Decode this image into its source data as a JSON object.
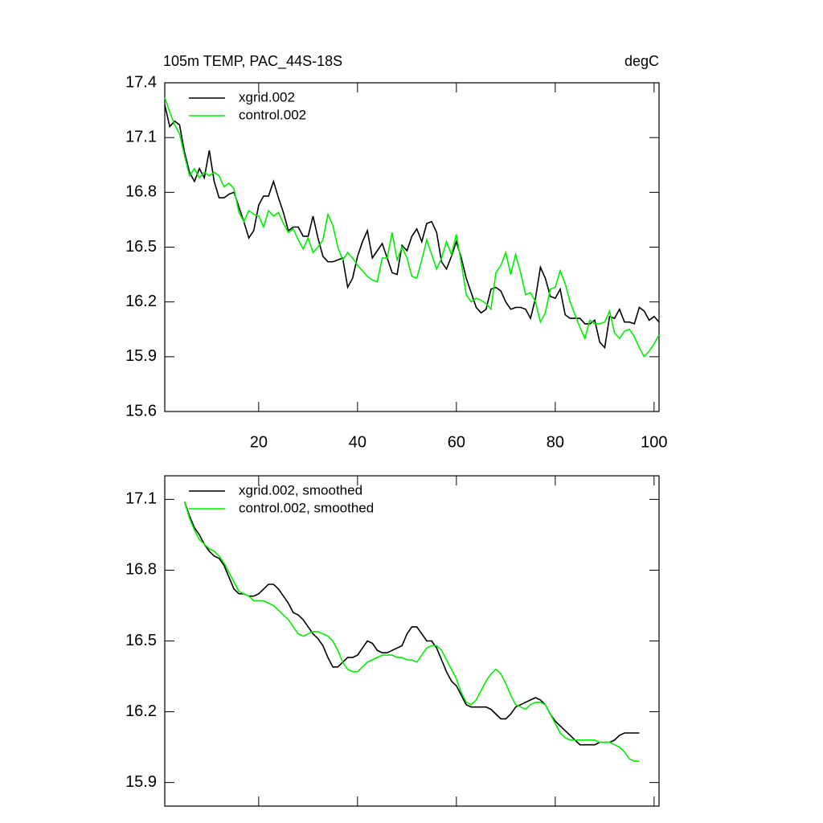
{
  "chart_data": [
    {
      "type": "line",
      "title": "105m TEMP, PAC_44S-18S",
      "units": "degC",
      "legend": "upper left",
      "x": [
        1,
        2,
        3,
        4,
        5,
        6,
        7,
        8,
        9,
        10,
        11,
        12,
        13,
        14,
        15,
        16,
        17,
        18,
        19,
        20,
        21,
        22,
        23,
        24,
        25,
        26,
        27,
        28,
        29,
        30,
        31,
        32,
        33,
        34,
        35,
        36,
        37,
        38,
        39,
        40,
        41,
        42,
        43,
        44,
        45,
        46,
        47,
        48,
        49,
        50,
        51,
        52,
        53,
        54,
        55,
        56,
        57,
        58,
        59,
        60,
        61,
        62,
        63,
        64,
        65,
        66,
        67,
        68,
        69,
        70,
        71,
        72,
        73,
        74,
        75,
        76,
        77,
        78,
        79,
        80,
        81,
        82,
        83,
        84,
        85,
        86,
        87,
        88,
        89,
        90,
        91,
        92,
        93,
        94,
        95,
        96,
        97,
        98,
        99,
        100,
        101
      ],
      "series": [
        {
          "name": "xgrid.002",
          "color": "#000000",
          "values": [
            17.28,
            17.16,
            17.19,
            17.17,
            17.02,
            16.91,
            16.86,
            16.93,
            16.88,
            17.03,
            16.86,
            16.77,
            16.77,
            16.79,
            16.8,
            16.72,
            16.64,
            16.55,
            16.59,
            16.73,
            16.78,
            16.78,
            16.86,
            16.77,
            16.69,
            16.59,
            16.61,
            16.61,
            16.56,
            16.56,
            16.67,
            16.55,
            16.45,
            16.42,
            16.42,
            16.43,
            16.44,
            16.28,
            16.33,
            16.45,
            16.53,
            16.59,
            16.44,
            16.48,
            16.52,
            16.44,
            16.36,
            16.35,
            16.51,
            16.48,
            16.56,
            16.6,
            16.53,
            16.63,
            16.64,
            16.58,
            16.42,
            16.38,
            16.45,
            16.53,
            16.44,
            16.33,
            16.25,
            16.17,
            16.14,
            16.16,
            16.27,
            16.28,
            16.26,
            16.2,
            16.16,
            16.17,
            16.17,
            16.16,
            16.11,
            16.22,
            16.39,
            16.33,
            16.23,
            16.22,
            16.27,
            16.13,
            16.11,
            16.11,
            16.11,
            16.08,
            16.08,
            16.1,
            15.98,
            15.95,
            16.12,
            16.11,
            16.16,
            16.09,
            16.09,
            16.08,
            16.17,
            16.15,
            16.1,
            16.12,
            16.09
          ]
        },
        {
          "name": "control.002",
          "color": "#00ee00",
          "values": [
            17.32,
            17.24,
            17.17,
            17.12,
            17.0,
            16.89,
            16.93,
            16.88,
            16.91,
            16.89,
            16.91,
            16.89,
            16.83,
            16.85,
            16.82,
            16.69,
            16.64,
            16.7,
            16.68,
            16.67,
            16.61,
            16.7,
            16.67,
            16.69,
            16.63,
            16.58,
            16.6,
            16.54,
            16.49,
            16.55,
            16.47,
            16.5,
            16.54,
            16.68,
            16.62,
            16.5,
            16.43,
            16.47,
            16.44,
            16.4,
            16.37,
            16.34,
            16.32,
            16.31,
            16.44,
            16.44,
            16.58,
            16.43,
            16.5,
            16.44,
            16.34,
            16.33,
            16.43,
            16.54,
            16.46,
            16.38,
            16.44,
            16.53,
            16.46,
            16.57,
            16.41,
            16.24,
            16.2,
            16.22,
            16.21,
            16.19,
            16.16,
            16.36,
            16.4,
            16.47,
            16.35,
            16.46,
            16.36,
            16.24,
            16.25,
            16.2,
            16.09,
            16.14,
            16.27,
            16.28,
            16.37,
            16.3,
            16.2,
            16.13,
            16.06,
            16.0,
            16.1,
            16.08,
            16.08,
            16.09,
            16.15,
            16.03,
            16.0,
            16.04,
            16.05,
            16.01,
            15.95,
            15.9,
            15.93,
            15.97,
            16.02
          ]
        }
      ],
      "xlim": [
        1,
        101
      ],
      "xticks": [
        20,
        40,
        60,
        80,
        100
      ],
      "xtick_labels": true,
      "ylim": [
        15.6,
        17.4
      ],
      "yticks": [
        15.6,
        15.9,
        16.2,
        16.5,
        16.8,
        17.1,
        17.4
      ]
    },
    {
      "type": "line",
      "legend": "upper left",
      "x": [
        1,
        2,
        3,
        4,
        5,
        6,
        7,
        8,
        9,
        10,
        11,
        12,
        13,
        14,
        15,
        16,
        17,
        18,
        19,
        20,
        21,
        22,
        23,
        24,
        25,
        26,
        27,
        28,
        29,
        30,
        31,
        32,
        33,
        34,
        35,
        36,
        37,
        38,
        39,
        40,
        41,
        42,
        43,
        44,
        45,
        46,
        47,
        48,
        49,
        50,
        51,
        52,
        53,
        54,
        55,
        56,
        57,
        58,
        59,
        60,
        61,
        62,
        63,
        64,
        65,
        66,
        67,
        68,
        69,
        70,
        71,
        72,
        73,
        74,
        75,
        76,
        77,
        78,
        79,
        80,
        81,
        82,
        83,
        84,
        85,
        86,
        87,
        88,
        89,
        90,
        91,
        92,
        93,
        94,
        95,
        96,
        97,
        98,
        99,
        100,
        101
      ],
      "series": [
        {
          "name": "xgrid.002, smoothed",
          "color": "#000000",
          "values": [
            null,
            null,
            null,
            null,
            17.09,
            17.03,
            16.98,
            16.95,
            16.91,
            16.88,
            16.86,
            16.85,
            16.82,
            16.77,
            16.72,
            16.7,
            16.7,
            16.69,
            16.69,
            16.7,
            16.72,
            16.74,
            16.74,
            16.72,
            16.69,
            16.66,
            16.62,
            16.61,
            16.59,
            16.56,
            16.53,
            16.51,
            16.48,
            16.43,
            16.39,
            16.39,
            16.41,
            16.43,
            16.43,
            16.44,
            16.47,
            16.5,
            16.49,
            16.46,
            16.45,
            16.45,
            16.46,
            16.47,
            16.48,
            16.53,
            16.56,
            16.56,
            16.53,
            16.5,
            16.5,
            16.47,
            16.42,
            16.37,
            16.33,
            16.31,
            16.27,
            16.23,
            16.22,
            16.22,
            16.22,
            16.22,
            16.21,
            16.19,
            16.17,
            16.17,
            16.19,
            16.22,
            16.23,
            16.24,
            16.25,
            16.26,
            16.25,
            16.23,
            16.19,
            16.16,
            16.14,
            16.12,
            16.1,
            16.08,
            16.06,
            16.06,
            16.06,
            16.06,
            16.07,
            16.07,
            16.07,
            16.08,
            16.1,
            16.11,
            16.11,
            16.11,
            16.11,
            null,
            null,
            null,
            null
          ]
        },
        {
          "name": "control.002, smoothed",
          "color": "#00ee00",
          "values": [
            null,
            null,
            null,
            null,
            17.09,
            17.02,
            16.97,
            16.93,
            16.91,
            16.89,
            16.88,
            16.86,
            16.83,
            16.79,
            16.75,
            16.71,
            16.7,
            16.69,
            16.67,
            16.67,
            16.67,
            16.66,
            16.65,
            16.63,
            16.61,
            16.59,
            16.56,
            16.53,
            16.52,
            16.53,
            16.54,
            16.54,
            16.53,
            16.52,
            16.5,
            16.46,
            16.41,
            16.38,
            16.37,
            16.37,
            16.39,
            16.41,
            16.42,
            16.43,
            16.44,
            16.44,
            16.44,
            16.43,
            16.43,
            16.42,
            16.42,
            16.41,
            16.44,
            16.47,
            16.48,
            16.48,
            16.46,
            16.42,
            16.38,
            16.34,
            16.28,
            16.24,
            16.23,
            16.25,
            16.29,
            16.33,
            16.36,
            16.38,
            16.36,
            16.32,
            16.27,
            16.23,
            16.22,
            16.21,
            16.23,
            16.24,
            16.24,
            16.23,
            16.19,
            16.15,
            16.11,
            16.09,
            16.08,
            16.08,
            16.08,
            16.08,
            16.08,
            16.08,
            16.07,
            16.07,
            16.07,
            16.06,
            16.05,
            16.03,
            16.0,
            15.99,
            15.99,
            null,
            null,
            null,
            null
          ]
        }
      ],
      "xlim": [
        1,
        101
      ],
      "xticks": [
        20,
        40,
        60,
        80,
        100
      ],
      "xtick_labels": false,
      "ylim": [
        15.8,
        17.2
      ],
      "yticks": [
        15.9,
        16.2,
        16.5,
        16.8,
        17.1
      ]
    }
  ]
}
